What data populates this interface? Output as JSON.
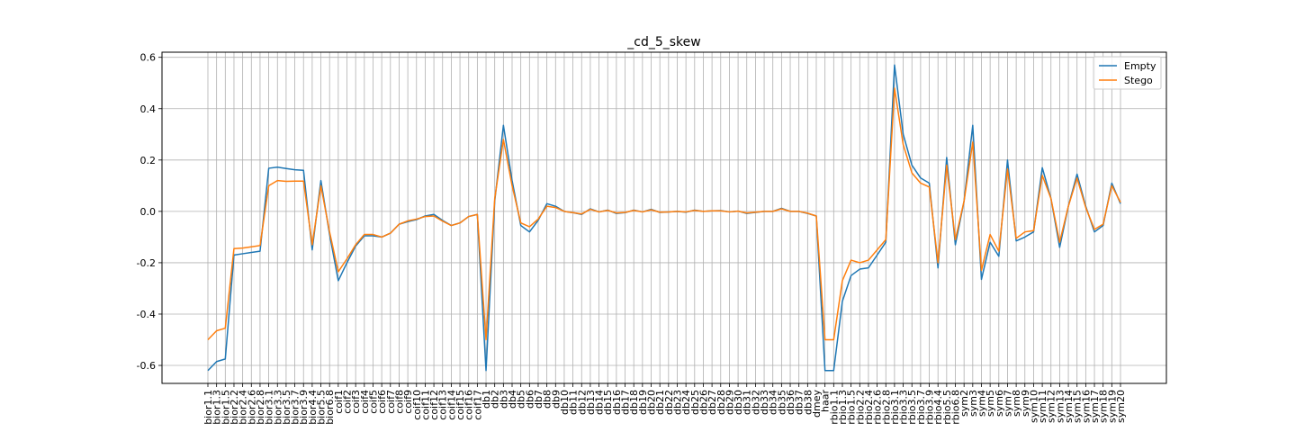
{
  "chart_data": {
    "type": "line",
    "title": "_cd_5_skew",
    "xlabel": "",
    "ylabel": "",
    "ylim": [
      -0.67,
      0.62
    ],
    "yticks": [
      "-0.6",
      "-0.4",
      "-0.2",
      "0.0",
      "0.2",
      "0.4",
      "0.6"
    ],
    "ytick_values": [
      -0.6,
      -0.4,
      -0.2,
      0.0,
      0.2,
      0.4,
      0.6
    ],
    "grid": true,
    "legend_position": "top-right",
    "categories": [
      "bior1.1",
      "bior1.3",
      "bior1.5",
      "bior2.2",
      "bior2.4",
      "bior2.6",
      "bior2.8",
      "bior3.1",
      "bior3.3",
      "bior3.5",
      "bior3.7",
      "bior3.9",
      "bior4.4",
      "bior5.5",
      "bior6.8",
      "coif1",
      "coif2",
      "coif3",
      "coif4",
      "coif5",
      "coif6",
      "coif7",
      "coif8",
      "coif9",
      "coif10",
      "coif11",
      "coif12",
      "coif13",
      "coif14",
      "coif15",
      "coif16",
      "coif17",
      "db1",
      "db2",
      "db3",
      "db4",
      "db5",
      "db6",
      "db7",
      "db8",
      "db9",
      "db10",
      "db11",
      "db12",
      "db13",
      "db14",
      "db15",
      "db16",
      "db17",
      "db18",
      "db19",
      "db20",
      "db21",
      "db22",
      "db23",
      "db24",
      "db25",
      "db26",
      "db27",
      "db28",
      "db29",
      "db30",
      "db31",
      "db32",
      "db33",
      "db34",
      "db35",
      "db36",
      "db37",
      "db38",
      "dmey",
      "haar",
      "rbio1.1",
      "rbio1.3",
      "rbio1.5",
      "rbio2.2",
      "rbio2.4",
      "rbio2.6",
      "rbio2.8",
      "rbio3.1",
      "rbio3.3",
      "rbio3.5",
      "rbio3.7",
      "rbio3.9",
      "rbio4.4",
      "rbio5.5",
      "rbio6.8",
      "sym2",
      "sym3",
      "sym4",
      "sym5",
      "sym6",
      "sym7",
      "sym8",
      "sym9",
      "sym10",
      "sym11",
      "sym12",
      "sym13",
      "sym14",
      "sym15",
      "sym16",
      "sym17",
      "sym18",
      "sym19",
      "sym20"
    ],
    "series": [
      {
        "name": "Empty",
        "color": "#1f77b4",
        "values": [
          -0.62,
          -0.585,
          -0.575,
          -0.17,
          -0.165,
          -0.16,
          -0.155,
          0.168,
          0.172,
          0.167,
          0.162,
          0.16,
          -0.15,
          0.12,
          -0.09,
          -0.27,
          -0.2,
          -0.135,
          -0.095,
          -0.095,
          -0.1,
          -0.085,
          -0.05,
          -0.04,
          -0.032,
          -0.018,
          -0.012,
          -0.035,
          -0.055,
          -0.045,
          -0.02,
          -0.012,
          -0.62,
          0.04,
          0.335,
          0.12,
          -0.055,
          -0.08,
          -0.035,
          0.03,
          0.02,
          0.0,
          -0.005,
          -0.012,
          0.01,
          -0.002,
          0.005,
          -0.008,
          -0.005,
          0.005,
          -0.002,
          0.008,
          -0.004,
          -0.002,
          0.0,
          -0.003,
          0.005,
          0.0,
          0.002,
          0.003,
          -0.002,
          0.001,
          -0.008,
          -0.004,
          0.0,
          0.0,
          0.012,
          0.0,
          0.0,
          -0.008,
          -0.018,
          -0.62,
          -0.62,
          -0.35,
          -0.25,
          -0.225,
          -0.22,
          -0.17,
          -0.12,
          0.57,
          0.3,
          0.18,
          0.13,
          0.11,
          -0.22,
          0.21,
          -0.13,
          0.04,
          0.335,
          -0.265,
          -0.12,
          -0.175,
          0.2,
          -0.115,
          -0.1,
          -0.08,
          0.17,
          0.05,
          -0.14,
          0.02,
          0.145,
          0.02,
          -0.08,
          -0.055,
          0.11,
          0.03
        ]
      },
      {
        "name": "Stego",
        "color": "#ff7f0e",
        "values": [
          -0.5,
          -0.465,
          -0.455,
          -0.145,
          -0.143,
          -0.138,
          -0.133,
          0.1,
          0.12,
          0.117,
          0.118,
          0.118,
          -0.13,
          0.1,
          -0.08,
          -0.235,
          -0.185,
          -0.13,
          -0.09,
          -0.09,
          -0.1,
          -0.085,
          -0.05,
          -0.037,
          -0.03,
          -0.02,
          -0.018,
          -0.038,
          -0.055,
          -0.045,
          -0.02,
          -0.012,
          -0.5,
          0.05,
          0.28,
          0.1,
          -0.045,
          -0.06,
          -0.03,
          0.02,
          0.015,
          0.0,
          -0.005,
          -0.01,
          0.008,
          -0.002,
          0.004,
          -0.006,
          -0.004,
          0.004,
          -0.002,
          0.006,
          -0.003,
          -0.002,
          0.0,
          -0.002,
          0.004,
          0.0,
          0.002,
          0.002,
          -0.002,
          0.001,
          -0.006,
          -0.003,
          0.0,
          0.0,
          0.01,
          0.0,
          0.0,
          -0.007,
          -0.018,
          -0.5,
          -0.5,
          -0.27,
          -0.19,
          -0.2,
          -0.19,
          -0.15,
          -0.11,
          0.48,
          0.26,
          0.15,
          0.11,
          0.095,
          -0.2,
          0.18,
          -0.11,
          0.04,
          0.27,
          -0.23,
          -0.09,
          -0.155,
          0.165,
          -0.105,
          -0.08,
          -0.075,
          0.14,
          0.05,
          -0.12,
          0.02,
          0.13,
          0.015,
          -0.07,
          -0.05,
          0.1,
          0.035
        ]
      }
    ]
  }
}
